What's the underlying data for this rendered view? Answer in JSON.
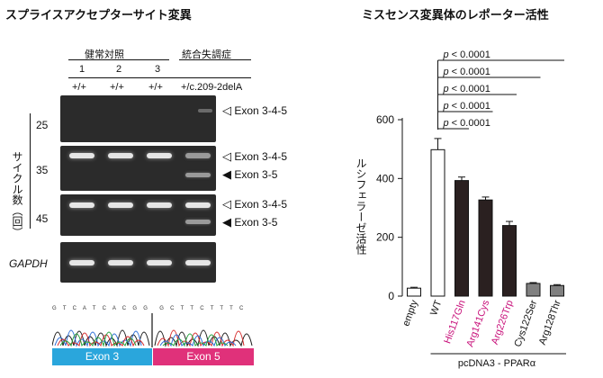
{
  "left_panel": {
    "title": "スプライスアクセプターサイト変異",
    "group_labels": [
      "健常対照",
      "統合失調症"
    ],
    "lane_numbers": [
      "1",
      "2",
      "3"
    ],
    "genotypes": [
      "+/+",
      "+/+",
      "+/+",
      "+/c.209-2delA"
    ],
    "y_axis_label": "サイクル数（回）",
    "cycle_labels": [
      "25",
      "35",
      "45"
    ],
    "band_labels": [
      "Exon 3-4-5",
      "Exon 3-4-5",
      "Exon 3-5",
      "Exon 3-4-5",
      "Exon 3-5"
    ],
    "gapdh_label": "GAPDH",
    "seq_letters_left": "G T C A T C A C G G",
    "seq_letters_right": "G C T T C T T T C",
    "exon_labels": [
      "Exon 3",
      "Exon 5"
    ],
    "colors": {
      "exon3": "#2aa6dc",
      "exon5": "#e0317a"
    }
  },
  "right_panel": {
    "title": "ミスセンス変異体のレポーター活性",
    "pvalue_label": "p < 0.0001",
    "pvalue_labels": [
      "p < 0.0001",
      "p < 0.0001",
      "p < 0.0001",
      "p < 0.0001",
      "p < 0.0001"
    ],
    "group_label": "pcDNA3 - PPARα"
  },
  "chart_data": {
    "type": "bar",
    "title": "ミスセンス変異体のレポーター活性",
    "ylabel": "ルシフェラーゼ活性",
    "ylim": [
      0,
      600
    ],
    "yticks": [
      0,
      200,
      400,
      600
    ],
    "categories": [
      "empty",
      "WT",
      "His117Gln",
      "Arg141Cys",
      "Arg226Trp",
      "Cys122Ser",
      "Arg128Thr"
    ],
    "values": [
      27,
      498,
      393,
      327,
      240,
      43,
      36
    ],
    "errors": [
      3,
      38,
      12,
      10,
      14,
      3,
      3
    ],
    "bar_colors": [
      "#ffffff",
      "#ffffff",
      "#2a2020",
      "#2a2020",
      "#2a2020",
      "#808080",
      "#808080"
    ],
    "label_colors": [
      "#111111",
      "#111111",
      "#c8107a",
      "#c8107a",
      "#c8107a",
      "#111111",
      "#111111"
    ],
    "comparison": "WT vs each mutant",
    "significance": "p < 0.0001"
  }
}
